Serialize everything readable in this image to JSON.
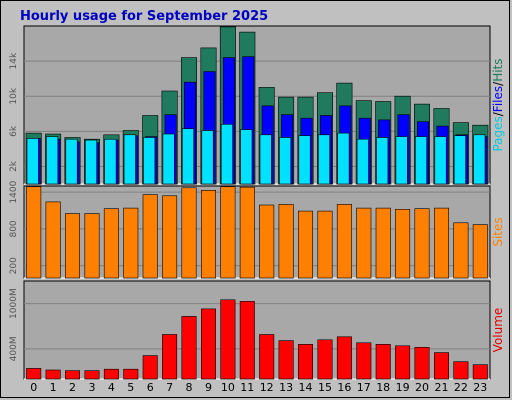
{
  "chart_data": {
    "type": "bar",
    "title": "Hourly usage for September 2025",
    "categories": [
      "0",
      "1",
      "2",
      "3",
      "4",
      "5",
      "6",
      "7",
      "8",
      "9",
      "10",
      "11",
      "12",
      "13",
      "14",
      "15",
      "16",
      "17",
      "18",
      "19",
      "20",
      "21",
      "22",
      "23"
    ],
    "panels": [
      {
        "name": "traffic",
        "ylim": [
          0,
          18000
        ],
        "yticks": [
          2000,
          6000,
          10000,
          14000
        ],
        "ytick_labels": [
          "2k",
          "6k",
          "10k",
          "14k"
        ],
        "side_label_parts": [
          "Pages",
          "/",
          "Files",
          "/",
          "Hits"
        ],
        "series": [
          {
            "name": "Hits",
            "color": "#1f7a5e",
            "values": [
              5800,
              5700,
              5300,
              5100,
              5600,
              6100,
              7800,
              10600,
              14400,
              15500,
              17900,
              17300,
              11000,
              9900,
              9900,
              10400,
              11500,
              9500,
              9400,
              10000,
              9100,
              8600,
              7000,
              6700
            ]
          },
          {
            "name": "Files",
            "color": "#0000ff",
            "values": [
              5200,
              5100,
              4800,
              4700,
              5000,
              5500,
              5400,
              7900,
              11600,
              12800,
              14400,
              14500,
              8900,
              7900,
              7500,
              7800,
              8900,
              7500,
              7300,
              7900,
              7100,
              6600,
              5600,
              5400
            ]
          },
          {
            "name": "Pages",
            "color": "#00e0ff",
            "values": [
              5200,
              5400,
              5100,
              5000,
              5100,
              5600,
              5300,
              5700,
              6300,
              6100,
              6800,
              6200,
              5600,
              5300,
              5500,
              5600,
              5800,
              5100,
              5300,
              5400,
              5400,
              5400,
              5500,
              5600
            ]
          }
        ]
      },
      {
        "name": "sites",
        "ylim": [
          0,
          1500
        ],
        "yticks": [
          200,
          800,
          1400
        ],
        "ytick_labels": [
          "200",
          "800",
          "1400"
        ],
        "side_label_parts": [
          "Sites"
        ],
        "series": [
          {
            "name": "Sites",
            "color": "#ff8000",
            "values": [
              1490,
              1240,
              1050,
              1050,
              1130,
              1140,
              1360,
              1340,
              1470,
              1430,
              1490,
              1480,
              1190,
              1200,
              1090,
              1090,
              1200,
              1140,
              1140,
              1120,
              1130,
              1140,
              900,
              870
            ]
          }
        ]
      },
      {
        "name": "volume",
        "ylim": [
          0,
          1300
        ],
        "yticks": [
          400,
          1000
        ],
        "ytick_labels": [
          "400M",
          "1000M"
        ],
        "side_label_parts": [
          "Volume"
        ],
        "series": [
          {
            "name": "Volume",
            "color": "#ff0000",
            "values": [
              140,
              120,
              110,
              110,
              130,
              130,
              310,
              590,
              830,
              930,
              1050,
              1030,
              590,
              510,
              460,
              520,
              560,
              480,
              460,
              440,
              420,
              350,
              230,
              190
            ]
          }
        ]
      }
    ],
    "colors": {
      "title": "#0000c0",
      "plot_bg": "#a8a8a8",
      "grid": "#808080",
      "bar_outline": "#000000"
    }
  }
}
